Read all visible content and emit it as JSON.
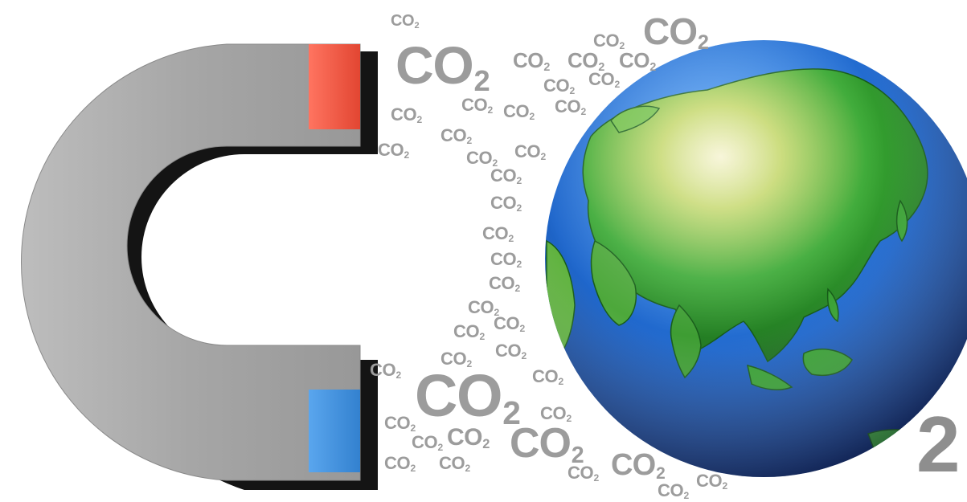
{
  "molecule": {
    "letters": "CO",
    "subscript": "2"
  },
  "big_two": "2",
  "colors": {
    "magnet_gray": "#a9a9a9",
    "magnet_shadow": "#141414",
    "north_pole": "#ee5b44",
    "south_pole": "#3f8fd9",
    "co2_text": "#9c9c9c",
    "ocean": "#1d62c4",
    "land": "#2ea82f",
    "background": "#ffffff"
  },
  "icons": [
    "magnet-icon",
    "earth-globe-icon"
  ]
}
